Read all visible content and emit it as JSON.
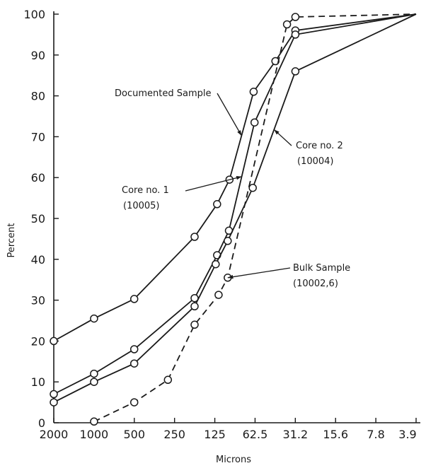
{
  "chart_data": {
    "type": "line",
    "xlabel": "Microns",
    "ylabel": "Percent",
    "x_ticks": [
      "2000",
      "1000",
      "500",
      "250",
      "125",
      "62.5",
      "31.2",
      "15.6",
      "7.8",
      "3.9"
    ],
    "x_scale": "log2 (decreasing)",
    "xlim": [
      2000,
      3.9
    ],
    "ylim": [
      0,
      100
    ],
    "y_ticks": [
      0,
      10,
      20,
      30,
      40,
      50,
      60,
      70,
      80,
      90,
      100
    ],
    "grid": false,
    "series": [
      {
        "name": "Documented Sample",
        "style": "solid",
        "points": [
          {
            "x": 2000,
            "y": 20
          },
          {
            "x": 1000,
            "y": 25.5
          },
          {
            "x": 500,
            "y": 30.3
          },
          {
            "x": 177,
            "y": 45.5
          },
          {
            "x": 120,
            "y": 53.5
          },
          {
            "x": 97,
            "y": 59.5
          },
          {
            "x": 64,
            "y": 81
          },
          {
            "x": 44,
            "y": 88.5
          },
          {
            "x": 31.2,
            "y": 96
          },
          {
            "x": 3.9,
            "y": 100
          }
        ]
      },
      {
        "name": "Core no. 1 (10005)",
        "style": "solid",
        "points": [
          {
            "x": 2000,
            "y": 7
          },
          {
            "x": 1000,
            "y": 12
          },
          {
            "x": 500,
            "y": 18
          },
          {
            "x": 177,
            "y": 30.5
          },
          {
            "x": 120,
            "y": 41
          },
          {
            "x": 98,
            "y": 47
          },
          {
            "x": 63,
            "y": 73.5
          },
          {
            "x": 31.2,
            "y": 95
          },
          {
            "x": 3.9,
            "y": 100
          }
        ]
      },
      {
        "name": "Core no. 2 (10004)",
        "style": "solid",
        "points": [
          {
            "x": 2000,
            "y": 5
          },
          {
            "x": 1000,
            "y": 10
          },
          {
            "x": 500,
            "y": 14.5
          },
          {
            "x": 177,
            "y": 28.5
          },
          {
            "x": 123,
            "y": 38.8
          },
          {
            "x": 100,
            "y": 44.5
          },
          {
            "x": 65,
            "y": 57.5
          },
          {
            "x": 31.2,
            "y": 86
          },
          {
            "x": 3.9,
            "y": 100
          }
        ]
      },
      {
        "name": "Bulk Sample (10002,6)",
        "style": "dashed",
        "points": [
          {
            "x": 1000,
            "y": 0.3
          },
          {
            "x": 500,
            "y": 5
          },
          {
            "x": 280,
            "y": 10.5
          },
          {
            "x": 177,
            "y": 24
          },
          {
            "x": 117,
            "y": 31.3
          },
          {
            "x": 100,
            "y": 35.5
          },
          {
            "x": 36,
            "y": 97.5
          },
          {
            "x": 31.2,
            "y": 99.3
          },
          {
            "x": 3.9,
            "y": 100
          }
        ]
      }
    ],
    "annotations": [
      {
        "lines": [
          "Documented Sample"
        ],
        "target": "Documented Sample"
      },
      {
        "lines": [
          "Core no. 2",
          "(10004)"
        ],
        "target": "Core no. 2 (10004)"
      },
      {
        "lines": [
          "Core no. 1",
          "(10005)"
        ],
        "target": "Core no. 1 (10005)"
      },
      {
        "lines": [
          "Bulk Sample",
          "(10002,6)"
        ],
        "target": "Bulk Sample (10002,6)"
      }
    ]
  }
}
